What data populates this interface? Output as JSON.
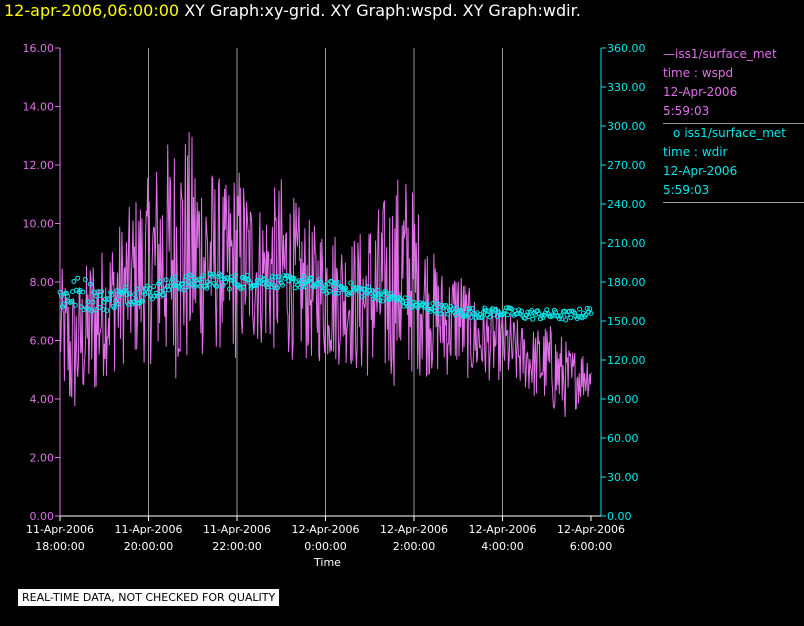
{
  "header": {
    "timestamp": "12-apr-2006,06:00:00",
    "titles": "XY Graph:xy-grid.  XY Graph:wspd.  XY Graph:wdir."
  },
  "colors": {
    "wspd": "#e070e8",
    "wdir": "#00e8e8",
    "grid": "#9a9a9a",
    "axis_text": "#ffffff"
  },
  "legend": [
    {
      "marker": "—",
      "source": "iss1/surface_met",
      "line1": "time : wspd",
      "line2": "12-Apr-2006",
      "line3": "5:59:03",
      "color": "#e070e8"
    },
    {
      "marker": "o",
      "source": "iss1/surface_met",
      "line1": "time : wdir",
      "line2": "12-Apr-2006",
      "line3": "5:59:03",
      "color": "#00e8e8"
    }
  ],
  "disclaimer": "REAL-TIME DATA, NOT CHECKED FOR QUALITY",
  "chart_data": {
    "type": "line",
    "xlabel": "Time",
    "x_ticks": [
      {
        "l1": "11-Apr-2006",
        "l2": "18:00:00",
        "h": 0
      },
      {
        "l1": "11-Apr-2006",
        "l2": "20:00:00",
        "h": 2
      },
      {
        "l1": "11-Apr-2006",
        "l2": "22:00:00",
        "h": 4
      },
      {
        "l1": "12-Apr-2006",
        "l2": "0:00:00",
        "h": 6
      },
      {
        "l1": "12-Apr-2006",
        "l2": "2:00:00",
        "h": 8
      },
      {
        "l1": "12-Apr-2006",
        "l2": "4:00:00",
        "h": 10
      },
      {
        "l1": "12-Apr-2006",
        "l2": "6:00:00",
        "h": 12
      }
    ],
    "xlim": [
      0,
      12
    ],
    "y_left": {
      "ticks": [
        "0.00",
        "2.00",
        "4.00",
        "6.00",
        "8.00",
        "10.00",
        "12.00",
        "14.00",
        "16.00"
      ],
      "lim": [
        0,
        16
      ]
    },
    "y_right": {
      "ticks": [
        "0.00",
        "30.00",
        "60.00",
        "90.00",
        "120.00",
        "150.00",
        "180.00",
        "210.00",
        "240.00",
        "270.00",
        "300.00",
        "330.00",
        "360.00"
      ],
      "lim": [
        0,
        360
      ]
    },
    "grid": true,
    "series": [
      {
        "name": "wspd",
        "style": "line",
        "axis": "left",
        "x": [
          0,
          0.25,
          0.5,
          0.75,
          1,
          1.25,
          1.5,
          1.75,
          2,
          2.25,
          2.5,
          2.75,
          3,
          3.25,
          3.5,
          3.75,
          4,
          4.25,
          4.5,
          4.75,
          5,
          5.25,
          5.5,
          5.75,
          6,
          6.25,
          6.5,
          6.75,
          7,
          7.25,
          7.5,
          7.75,
          8,
          8.25,
          8.5,
          8.75,
          9,
          9.25,
          9.5,
          9.75,
          10,
          10.25,
          10.5,
          10.75,
          11,
          11.25,
          11.5,
          11.75,
          12
        ],
        "values": [
          6.5,
          5.5,
          6.0,
          6.5,
          7.0,
          7.4,
          7.8,
          8.2,
          8.4,
          8.8,
          8.9,
          9.0,
          9.0,
          8.9,
          8.7,
          8.5,
          8.7,
          8.6,
          8.3,
          8.3,
          8.5,
          8.2,
          7.8,
          7.6,
          7.7,
          7.5,
          7.4,
          7.2,
          7.5,
          7.6,
          7.9,
          8.3,
          8.0,
          7.3,
          6.8,
          6.5,
          6.9,
          6.2,
          6.0,
          5.9,
          5.9,
          5.6,
          5.4,
          5.2,
          5.2,
          4.9,
          4.6,
          4.8,
          4.9
        ],
        "noise": [
          1.3,
          1.6,
          1.4,
          1.8,
          1.4,
          1.6,
          1.6,
          1.9,
          2.0,
          2.4,
          2.6,
          2.8,
          2.6,
          2.2,
          2.0,
          1.8,
          2.2,
          1.8,
          1.6,
          1.7,
          2.0,
          1.8,
          1.6,
          1.5,
          1.6,
          1.5,
          1.4,
          1.6,
          1.8,
          2.0,
          2.2,
          2.4,
          2.0,
          1.6,
          1.3,
          1.1,
          1.2,
          1.0,
          0.9,
          0.8,
          0.8,
          0.8,
          0.7,
          0.8,
          0.9,
          1.0,
          0.8,
          0.6,
          0.5
        ]
      },
      {
        "name": "wdir",
        "style": "scatter",
        "axis": "right",
        "x": [
          0,
          0.5,
          1,
          1.5,
          2,
          2.5,
          3,
          3.5,
          4,
          4.5,
          5,
          5.5,
          6,
          6.5,
          7,
          7.5,
          8,
          8.5,
          9,
          9.5,
          10,
          10.5,
          11,
          11.5,
          12
        ],
        "values": [
          168,
          172,
          165,
          170,
          172,
          178,
          180,
          181,
          180,
          181,
          180,
          180,
          176,
          175,
          172,
          168,
          162,
          160,
          157,
          156,
          157,
          155,
          155,
          154,
          157
        ],
        "noise": [
          11,
          14,
          8,
          8,
          7,
          6,
          6,
          6,
          6,
          5,
          5,
          5,
          5,
          5,
          5,
          4,
          4,
          4,
          4,
          4,
          4,
          4,
          4,
          4,
          4
        ]
      }
    ]
  }
}
